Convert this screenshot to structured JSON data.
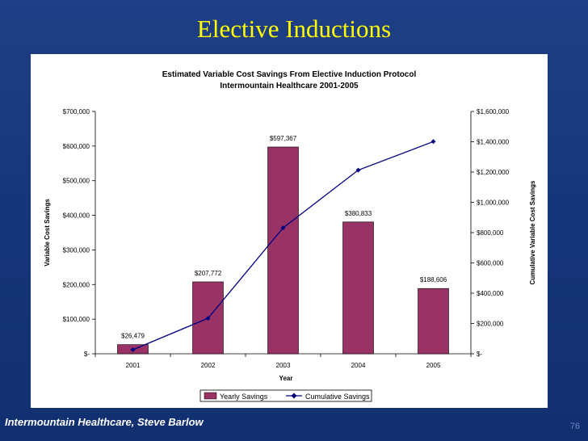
{
  "slide": {
    "title": "Elective Inductions",
    "footer": "Intermountain Healthcare, Steve Barlow",
    "page_number": "76"
  },
  "chart_data": {
    "type": "bar",
    "title": "Estimated Variable Cost Savings From Elective Induction Protocol",
    "subtitle": "Intermountain Healthcare 2001-2005",
    "xlabel": "Year",
    "ylabel": "Variable Cost Savings",
    "y2label": "Cumulative Variable Cost Savings",
    "categories": [
      "2001",
      "2002",
      "2003",
      "2004",
      "2005"
    ],
    "ylim": [
      0,
      700000
    ],
    "y2lim": [
      0,
      1600000
    ],
    "yticks": [
      "$-",
      "$100,000",
      "$200,000",
      "$300,000",
      "$400,000",
      "$500,000",
      "$600,000",
      "$700,000"
    ],
    "y2ticks": [
      "$-",
      "$200,000",
      "$400,000",
      "$600,000",
      "$800,000",
      "$1,000,000",
      "$1,200,000",
      "$1,400,000",
      "$1,600,000"
    ],
    "series": [
      {
        "name": "Yearly Savings",
        "kind": "bar",
        "axis": "left",
        "color": "#993366",
        "values": [
          26479,
          207772,
          597367,
          380833,
          188606
        ],
        "labels": [
          "$26,479",
          "$207,772",
          "$597,367",
          "$380,833",
          "$188,606"
        ]
      },
      {
        "name": "Cumulative Savings",
        "kind": "line",
        "axis": "right",
        "color": "#000080",
        "values": [
          26479,
          234251,
          831618,
          1212451,
          1401057
        ]
      }
    ],
    "legend": "bottom-center"
  }
}
